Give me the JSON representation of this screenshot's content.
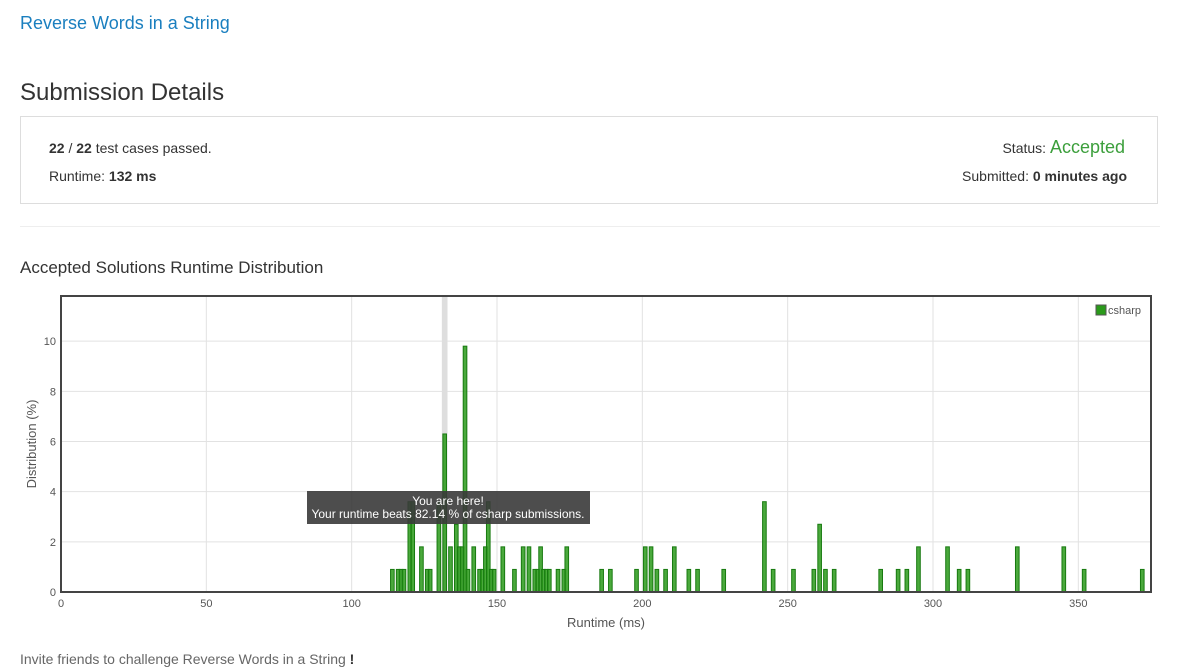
{
  "problem": {
    "title": "Reverse Words in a String"
  },
  "page": {
    "title": "Submission Details"
  },
  "details": {
    "passed": "22",
    "total": "22",
    "sep": " / ",
    "passed_suffix": " test cases passed.",
    "runtime_label": "Runtime: ",
    "runtime_value": "132 ms",
    "status_label": "Status: ",
    "status_value": "Accepted",
    "status_color": "#3c9f3c",
    "submitted_label": "Submitted: ",
    "submitted_value": "0 minutes ago"
  },
  "distribution": {
    "title": "Accepted Solutions Runtime Distribution"
  },
  "chart_data": {
    "type": "bar",
    "xlabel": "Runtime (ms)",
    "ylabel": "Distribution (%)",
    "xlim": [
      0,
      375
    ],
    "ylim": [
      0,
      11.8
    ],
    "xticks": [
      0,
      50,
      100,
      150,
      200,
      250,
      300,
      350
    ],
    "yticks": [
      0,
      2,
      4,
      6,
      8,
      10
    ],
    "grid": true,
    "legend_position": "top-right",
    "series": [
      {
        "name": "csharp",
        "color": "#2a9a1a",
        "x": [
          114,
          116,
          117,
          118,
          120,
          121,
          124,
          126,
          127,
          130,
          132,
          134,
          136,
          137,
          138,
          139,
          140,
          142,
          144,
          145,
          146,
          147,
          148,
          149,
          152,
          156,
          159,
          161,
          163,
          164,
          165,
          166,
          167,
          168,
          171,
          173,
          174,
          186,
          189,
          198,
          201,
          203,
          205,
          208,
          211,
          216,
          219,
          228,
          242,
          245,
          252,
          259,
          261,
          263,
          266,
          282,
          288,
          291,
          295,
          305,
          309,
          312,
          329,
          345,
          352,
          372
        ],
        "values": [
          0.9,
          0.9,
          0.9,
          0.9,
          3.6,
          3.6,
          1.8,
          0.9,
          0.9,
          3.6,
          6.3,
          1.8,
          2.7,
          1.8,
          1.8,
          9.8,
          0.9,
          1.8,
          0.9,
          0.9,
          1.8,
          3.6,
          0.9,
          0.9,
          1.8,
          0.9,
          1.8,
          1.8,
          0.9,
          0.9,
          1.8,
          0.9,
          0.9,
          0.9,
          0.9,
          0.9,
          1.8,
          0.9,
          0.9,
          0.9,
          1.8,
          1.8,
          0.9,
          0.9,
          1.8,
          0.9,
          0.9,
          0.9,
          3.6,
          0.9,
          0.9,
          0.9,
          2.7,
          0.9,
          0.9,
          0.9,
          0.9,
          0.9,
          1.8,
          1.8,
          0.9,
          0.9,
          1.8,
          1.8,
          0.9,
          0.9
        ]
      }
    ],
    "highlight_x": 132,
    "tooltip": {
      "line1": "You are here!",
      "line2": "Your runtime beats 82.14 % of csharp submissions."
    }
  },
  "footer": {
    "invite_prefix": "Invite friends to challenge ",
    "invite_problem": "Reverse Words in a String",
    "invite_suffix": " !"
  }
}
